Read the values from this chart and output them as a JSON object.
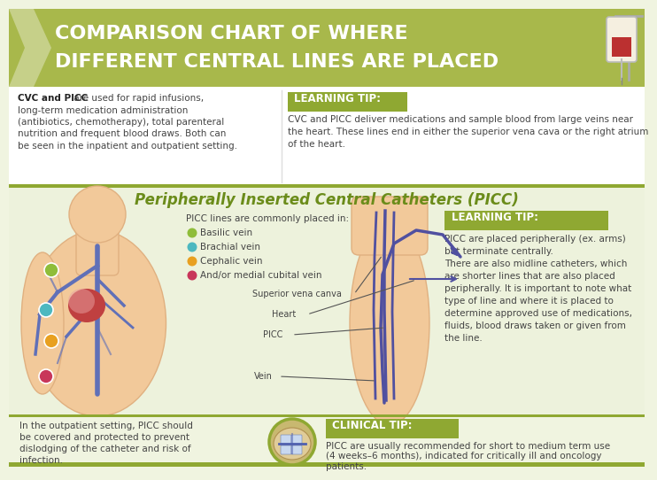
{
  "bg_color": "#f0f4e0",
  "header_bg": "#a8b84b",
  "header_text_line1": "COMPARISON CHART OF WHERE",
  "header_text_line2": "DIFFERENT CENTRAL LINES ARE PLACED",
  "header_text_color": "#ffffff",
  "tip_box_color": "#8fa832",
  "body_text_color": "#444444",
  "olive_green": "#8fa832",
  "title_color": "#6b8c1a",
  "section1_bg": "#ffffff",
  "picc_bg": "#edf2dc",
  "bottom_bg": "#f0f4e0",
  "cvc_bold": "CVC and PICC",
  "cvc_rest": " are used for rapid infusions,\nlong-term medication administration\n(antibiotics, chemotherapy), total parenteral\nnutrition and frequent blood draws. Both can\nbe seen in the inpatient and outpatient setting.",
  "learning_tip1_label": "LEARNING TIP:",
  "learning_tip1_text": "CVC and PICC deliver medications and sample blood from large veins near\nthe heart. These lines end in either the superior vena cava or the right atrium\nof the heart.",
  "picc_section_title": "Peripherally Inserted Central Catheters (PICC)",
  "picc_placed_label": "PICC lines are commonly placed in:",
  "vein_colors": [
    "#8fbd3a",
    "#4db8c0",
    "#e8a020",
    "#c8365a"
  ],
  "vein_labels": [
    "Basilic vein",
    "Brachial vein",
    "Cephalic vein",
    "And/or medial cubital vein"
  ],
  "anatomy_labels": [
    "Superior vena canva",
    "Heart",
    "PICC",
    "Vein"
  ],
  "learning_tip2_label": "LEARNING TIP:",
  "learning_tip2_text": "PICC are placed peripherally (ex. arms)\nbut terminate centrally.\nThere are also midline catheters, which\nare shorter lines that are also placed\nperipherally. It is important to note what\ntype of line and where it is placed to\ndetermine approved use of medications,\nfluids, blood draws taken or given from\nthe line.",
  "outpatient_text": "In the outpatient setting, PICC should\nbe covered and protected to prevent\ndislodging of the catheter and risk of\ninfection.",
  "clinical_tip_label": "CLINICAL TIP:",
  "clinical_tip_text": "PICC are usually recommended for short to medium term use\n(4 weeks–6 months), indicated for critically ill and oncology\npatients.",
  "skin_color": "#f2c99a",
  "skin_edge": "#e0b080",
  "vein_color_dark": "#4a5aaa",
  "vein_color_blue": "#6070b8",
  "heart_color": "#c04040",
  "heart_light": "#e8a0a0",
  "picc_line_color": "#5050a0",
  "separator_color": "#8fa832",
  "footer_color": "#8fa832",
  "shadow_color": "#d8dcc0"
}
